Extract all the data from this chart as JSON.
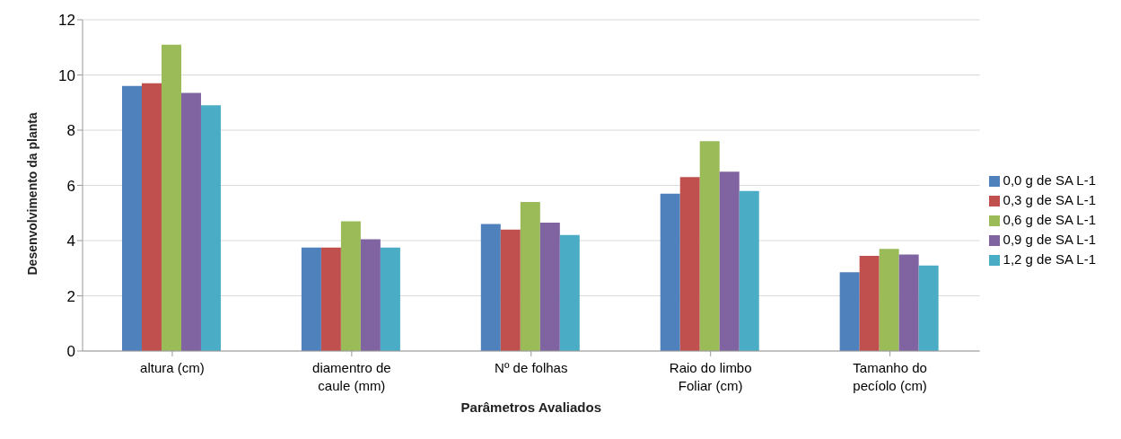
{
  "chart_data": {
    "type": "bar",
    "xlabel": "Parâmetros Avaliados",
    "ylabel": "Desenvolvimento da planta",
    "categories": [
      "altura (cm)",
      "diamentro de\ncaule (mm)",
      "Nº de folhas",
      "Raio do limbo\nFoliar (cm)",
      "Tamanho do\npecíolo (cm)"
    ],
    "series": [
      {
        "name": "0,0 g de SA L-1",
        "color": "#4f81bd",
        "values": [
          9.6,
          3.75,
          4.6,
          5.7,
          2.85
        ]
      },
      {
        "name": "0,3 g de SA L-1",
        "color": "#c0504d",
        "values": [
          9.7,
          3.75,
          4.4,
          6.3,
          3.45
        ]
      },
      {
        "name": "0,6 g de SA L-1",
        "color": "#9bbb59",
        "values": [
          11.1,
          4.7,
          5.4,
          7.6,
          3.7
        ]
      },
      {
        "name": "0,9 g de SA L-1",
        "color": "#8064a2",
        "values": [
          9.35,
          4.05,
          4.65,
          6.5,
          3.5
        ]
      },
      {
        "name": "1,2 g de SA L-1",
        "color": "#4bacc6",
        "values": [
          8.9,
          3.75,
          4.2,
          5.8,
          3.1
        ]
      }
    ],
    "ylim": [
      0,
      12
    ],
    "yticks": [
      0,
      2,
      4,
      6,
      8,
      10,
      12
    ],
    "grid": "y",
    "legend": "right"
  }
}
